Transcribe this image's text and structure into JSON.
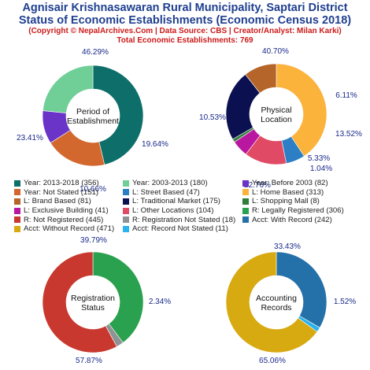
{
  "header": {
    "title_line1": "Agnisair Krishnasawaran Rural Municipality, Saptari District",
    "title_line2": "Status of Economic Establishments (Economic Census 2018)",
    "copyright": "(Copyright © NepalArchives.Com | Data Source: CBS | Creator/Analyst: Milan Karki)",
    "total": "Total Economic Establishments: 769"
  },
  "chart_data": [
    {
      "type": "pie",
      "center_label": [
        "Period of",
        "Establishment"
      ],
      "categories": [
        "Year: 2013-2018",
        "Year: Not Stated",
        "Year: Before 2003",
        "Year: 2003-2013"
      ],
      "values": [
        356,
        151,
        82,
        180
      ],
      "percent_labels": [
        "46.29%",
        "19.64%",
        "10.66%",
        "23.41%"
      ],
      "colors": [
        "#0d6e6a",
        "#d2682d",
        "#6a34c8",
        "#6fcf97"
      ]
    },
    {
      "type": "pie",
      "center_label": [
        "Physical",
        "Location"
      ],
      "categories": [
        "L: Home Based",
        "L: Street Based",
        "L: Other Locations",
        "L: Exclusive Building",
        "L: Shopping Mall",
        "L: Traditional Market",
        "L: Brand Based"
      ],
      "values": [
        313,
        47,
        104,
        41,
        8,
        175,
        81
      ],
      "percent_labels": [
        "40.70%",
        "6.11%",
        "13.52%",
        "5.33%",
        "1.04%",
        "22.76%",
        "10.53%"
      ],
      "colors": [
        "#fbb33c",
        "#2c7fc4",
        "#e14a64",
        "#b9179f",
        "#2e7d3a",
        "#0b1050",
        "#b5652a"
      ]
    },
    {
      "type": "pie",
      "center_label": [
        "Registration",
        "Status"
      ],
      "categories": [
        "R: Legally Registered",
        "R: Registration Not Stated",
        "R: Not Registered"
      ],
      "values": [
        306,
        18,
        445
      ],
      "percent_labels": [
        "39.79%",
        "2.34%",
        "57.87%"
      ],
      "colors": [
        "#2aa14e",
        "#8e9494",
        "#c8382e"
      ]
    },
    {
      "type": "pie",
      "center_label": [
        "Accounting",
        "Records"
      ],
      "categories": [
        "Acct: With Record",
        "Acct: Record Not Stated",
        "Acct: Without Record"
      ],
      "values": [
        242,
        11,
        471
      ],
      "percent_labels": [
        "33.43%",
        "1.52%",
        "65.06%"
      ],
      "colors": [
        "#2470a8",
        "#2ab3ec",
        "#d8aa12"
      ]
    }
  ],
  "legend": [
    [
      {
        "label": "Year: 2013-2018 (356)",
        "color": "#0d6e6a"
      },
      {
        "label": "Year: 2003-2013 (180)",
        "color": "#6fcf97"
      },
      {
        "label": "Year: Before 2003 (82)",
        "color": "#6a34c8"
      }
    ],
    [
      {
        "label": "Year: Not Stated (151)",
        "color": "#d2682d"
      },
      {
        "label": "L: Street Based (47)",
        "color": "#2c7fc4"
      },
      {
        "label": "L: Home Based (313)",
        "color": "#fbb33c"
      }
    ],
    [
      {
        "label": "L: Brand Based (81)",
        "color": "#b5652a"
      },
      {
        "label": "L: Traditional Market (175)",
        "color": "#0b1050"
      },
      {
        "label": "L: Shopping Mall (8)",
        "color": "#2e7d3a"
      }
    ],
    [
      {
        "label": "L: Exclusive Building (41)",
        "color": "#b9179f"
      },
      {
        "label": "L: Other Locations (104)",
        "color": "#e14a64"
      },
      {
        "label": "R: Legally Registered (306)",
        "color": "#2aa14e"
      }
    ],
    [
      {
        "label": "R: Not Registered (445)",
        "color": "#c8382e"
      },
      {
        "label": "R: Registration Not Stated (18)",
        "color": "#8e9494"
      },
      {
        "label": "Acct: With Record (242)",
        "color": "#2470a8"
      }
    ],
    [
      {
        "label": "Acct: Without Record (471)",
        "color": "#d8aa12"
      },
      {
        "label": "Acct: Record Not Stated (11)",
        "color": "#2ab3ec"
      }
    ]
  ]
}
